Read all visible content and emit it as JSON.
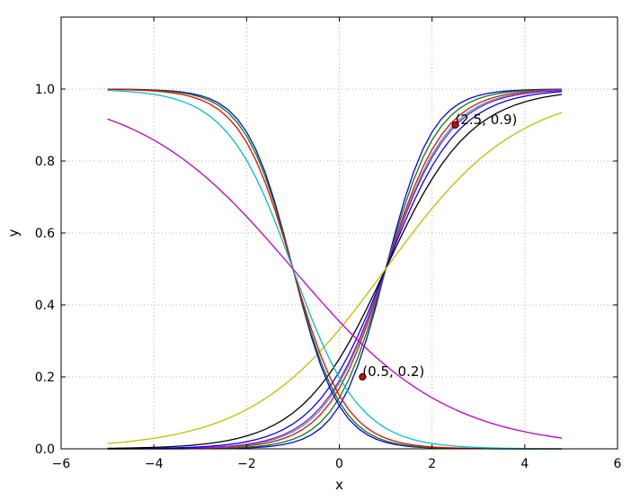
{
  "chart_data": {
    "type": "line",
    "xlabel": "x",
    "ylabel": "y",
    "xlim": [
      -6,
      6
    ],
    "ylim": [
      0,
      1.2
    ],
    "xticks": [
      -6,
      -4,
      -2,
      0,
      2,
      4,
      6
    ],
    "yticks": [
      0.0,
      0.2,
      0.4,
      0.6,
      0.8,
      1.0
    ],
    "ytick_labels": [
      "0.0",
      "0.2",
      "0.4",
      "0.6",
      "0.8",
      "1.0"
    ],
    "grid": true,
    "x_start": -5,
    "x_end": 4.8,
    "x_step": 0.2,
    "series": [
      {
        "color": "#0000ff",
        "formula": "sigmoid",
        "center": 1,
        "slope": 2,
        "direction": "increasing"
      },
      {
        "color": "#008000",
        "formula": "sigmoid",
        "center": 1,
        "slope": 1.8,
        "direction": "increasing"
      },
      {
        "color": "#ff0000",
        "formula": "sigmoid",
        "center": 1,
        "slope": 1.6,
        "direction": "increasing"
      },
      {
        "color": "#00bfbf",
        "formula": "sigmoid",
        "center": 1,
        "slope": 1.5,
        "direction": "increasing"
      },
      {
        "color": "#bf00bf",
        "formula": "sigmoid",
        "center": 1,
        "slope": 1.45,
        "direction": "increasing"
      },
      {
        "color": "#0000ff",
        "formula": "sigmoid",
        "center": 1,
        "slope": 1.3,
        "direction": "increasing"
      },
      {
        "color": "#000000",
        "formula": "sigmoid",
        "center": 1,
        "slope": 1.1,
        "direction": "increasing"
      },
      {
        "color": "#bfbf00",
        "formula": "sigmoid",
        "center": 1,
        "slope": 0.7,
        "direction": "increasing"
      },
      {
        "color": "#0000ff",
        "formula": "sigmoid",
        "center": -1,
        "slope": 2,
        "direction": "decreasing"
      },
      {
        "color": "#008000",
        "formula": "sigmoid",
        "center": -1,
        "slope": 1.9,
        "direction": "decreasing"
      },
      {
        "color": "#ff0000",
        "formula": "sigmoid",
        "center": -1,
        "slope": 1.75,
        "direction": "decreasing"
      },
      {
        "color": "#00bfbf",
        "formula": "sigmoid",
        "center": -1,
        "slope": 1.4,
        "direction": "decreasing"
      },
      {
        "color": "#bf00bf",
        "formula": "sigmoid",
        "center": -1,
        "slope": 0.6,
        "direction": "decreasing"
      }
    ],
    "annotations": [
      {
        "x": 0.5,
        "y": 0.2,
        "text": "(0.5, 0.2)"
      },
      {
        "x": 2.5,
        "y": 0.9,
        "text": "(2.5, 0.9)"
      }
    ]
  }
}
